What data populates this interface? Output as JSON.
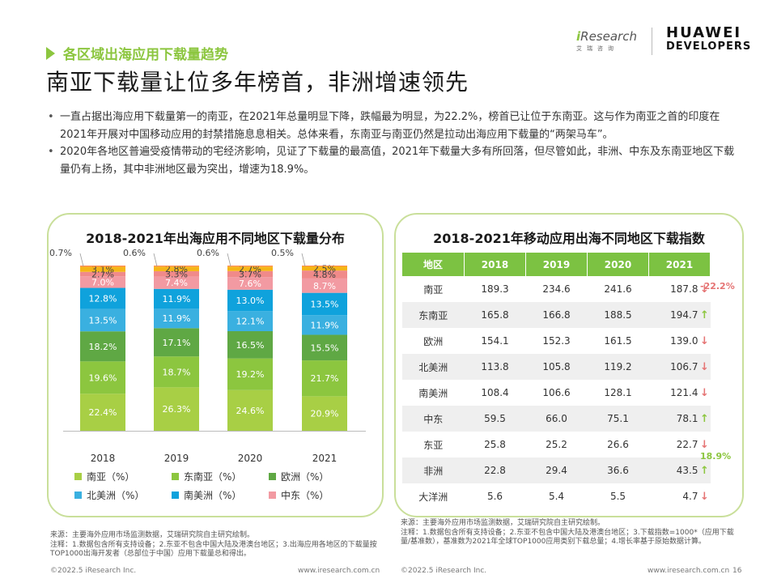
{
  "header": {
    "section_label": "各区域出海应用下载量趋势",
    "headline": "南亚下载量让位多年榜首，非洲增速领先",
    "logo_iresearch_i": "i",
    "logo_iresearch_text": "Research",
    "logo_iresearch_sub": "艾瑞咨询",
    "logo_huawei_line1": "HUAWEI",
    "logo_huawei_line2": "DEVELOPERS"
  },
  "bullets": [
    "一直占据出海应用下载量第一的南亚，在2021年总量明显下降，跌幅最为明显，为22.2%，榜首已让位于东南亚。这与作为南亚之首的印度在2021年开展对中国移动应用的封禁措施息息相关。总体来看，东南亚与南亚仍然是拉动出海应用下载量的“两架马车”。",
    "2020年各地区普遍受疫情带动的宅经济影响，见证了下载量的最高值，2021年下载量大多有所回落，但尽管如此，非洲、中东及东南亚地区下载量仍有上扬，其中非洲地区最为突出，增速为18.9%。"
  ],
  "chart_data": [
    {
      "type": "bar",
      "stacked": "percent",
      "title": "2018-2021年出海应用不同地区下载量分布",
      "categories": [
        "2018",
        "2019",
        "2020",
        "2021"
      ],
      "series": [
        {
          "name": "南亚（%）",
          "color": "#a8cf45",
          "values": [
            22.4,
            26.3,
            24.6,
            20.9
          ]
        },
        {
          "name": "东南亚（%）",
          "color": "#8cc63f",
          "values": [
            19.6,
            18.7,
            19.2,
            21.7
          ]
        },
        {
          "name": "欧洲（%）",
          "color": "#5fa844",
          "values": [
            18.2,
            17.1,
            16.5,
            15.5
          ]
        },
        {
          "name": "北美洲（%）",
          "color": "#3ab0e0",
          "values": [
            13.5,
            11.9,
            12.1,
            11.9
          ]
        },
        {
          "name": "南美洲（%）",
          "color": "#0fa2dc",
          "values": [
            12.8,
            11.9,
            13.0,
            13.5
          ]
        },
        {
          "name": "中东（%）",
          "color": "#f29aa2",
          "values": [
            7.0,
            7.4,
            7.6,
            8.7
          ]
        },
        {
          "name": "",
          "color": "#f08a8a",
          "values": [
            2.7,
            3.3,
            3.7,
            4.8
          ]
        },
        {
          "name": "",
          "color": "#f5b617",
          "values": [
            3.1,
            2.8,
            2.7,
            2.5
          ]
        },
        {
          "name": "",
          "color": "#ff8a4c",
          "values": [
            0.7,
            0.6,
            0.6,
            0.5
          ]
        }
      ],
      "ylim": [
        0,
        100
      ],
      "legend_position": "bottom",
      "xlabel": "",
      "ylabel": ""
    },
    {
      "type": "table",
      "title": "2018-2021年移动应用出海不同地区下载指数",
      "columns": [
        "地区",
        "2018",
        "2019",
        "2020",
        "2021"
      ],
      "rows": [
        {
          "region": "南亚",
          "values": [
            "189.3",
            "234.6",
            "241.6",
            "187.8"
          ],
          "trend": "down",
          "note": "-22.2%"
        },
        {
          "region": "东南亚",
          "values": [
            "165.8",
            "166.8",
            "188.5",
            "194.7"
          ],
          "trend": "up",
          "note": ""
        },
        {
          "region": "欧洲",
          "values": [
            "154.1",
            "152.3",
            "161.5",
            "139.0"
          ],
          "trend": "down",
          "note": ""
        },
        {
          "region": "北美洲",
          "values": [
            "113.8",
            "105.8",
            "119.2",
            "106.7"
          ],
          "trend": "down",
          "note": ""
        },
        {
          "region": "南美洲",
          "values": [
            "108.4",
            "106.6",
            "128.1",
            "121.4"
          ],
          "trend": "down",
          "note": ""
        },
        {
          "region": "中东",
          "values": [
            "59.5",
            "66.0",
            "75.1",
            "78.1"
          ],
          "trend": "up",
          "note": ""
        },
        {
          "region": "东亚",
          "values": [
            "25.8",
            "25.2",
            "26.6",
            "22.7"
          ],
          "trend": "down",
          "note": ""
        },
        {
          "region": "非洲",
          "values": [
            "22.8",
            "29.4",
            "36.6",
            "43.5"
          ],
          "trend": "up",
          "note": "18.9%"
        },
        {
          "region": "大洋洲",
          "values": [
            "5.6",
            "5.4",
            "5.5",
            "4.7"
          ],
          "trend": "down",
          "note": ""
        }
      ]
    }
  ],
  "colors": {
    "accent": "#8cc63f",
    "header_green": "#7cc242",
    "down": "#e57373",
    "panel_border": "#c9df9a"
  },
  "notes": {
    "left": [
      "来源：主要海外应用市场监测数据，艾瑞研究院自主研究绘制。",
      "注释：1.数据包含所有支持设备；2.东亚不包含中国大陆及港澳台地区；3.出海应用各地区的下载量按TOP1000出海开发者（总部位于中国）应用下载量总和得出。"
    ],
    "right": [
      "来源：主要海外应用市场监测数据，艾瑞研究院自主研究绘制。",
      "注释：1.数据包含所有支持设备；2.东亚不包含中国大陆及港澳台地区；3.下载指数=1000*（应用下载量/基准数），基准数为2021年全球TOP1000应用类别下载总量；4.增长率基于原始数据计算。"
    ]
  },
  "footer": {
    "copyright_left": "©2022.5 iResearch Inc.",
    "url_left": "www.iresearch.com.cn",
    "copyright_right": "©2022.5 iResearch Inc.",
    "url_right": "www.iresearch.com.cn",
    "page": "16"
  }
}
